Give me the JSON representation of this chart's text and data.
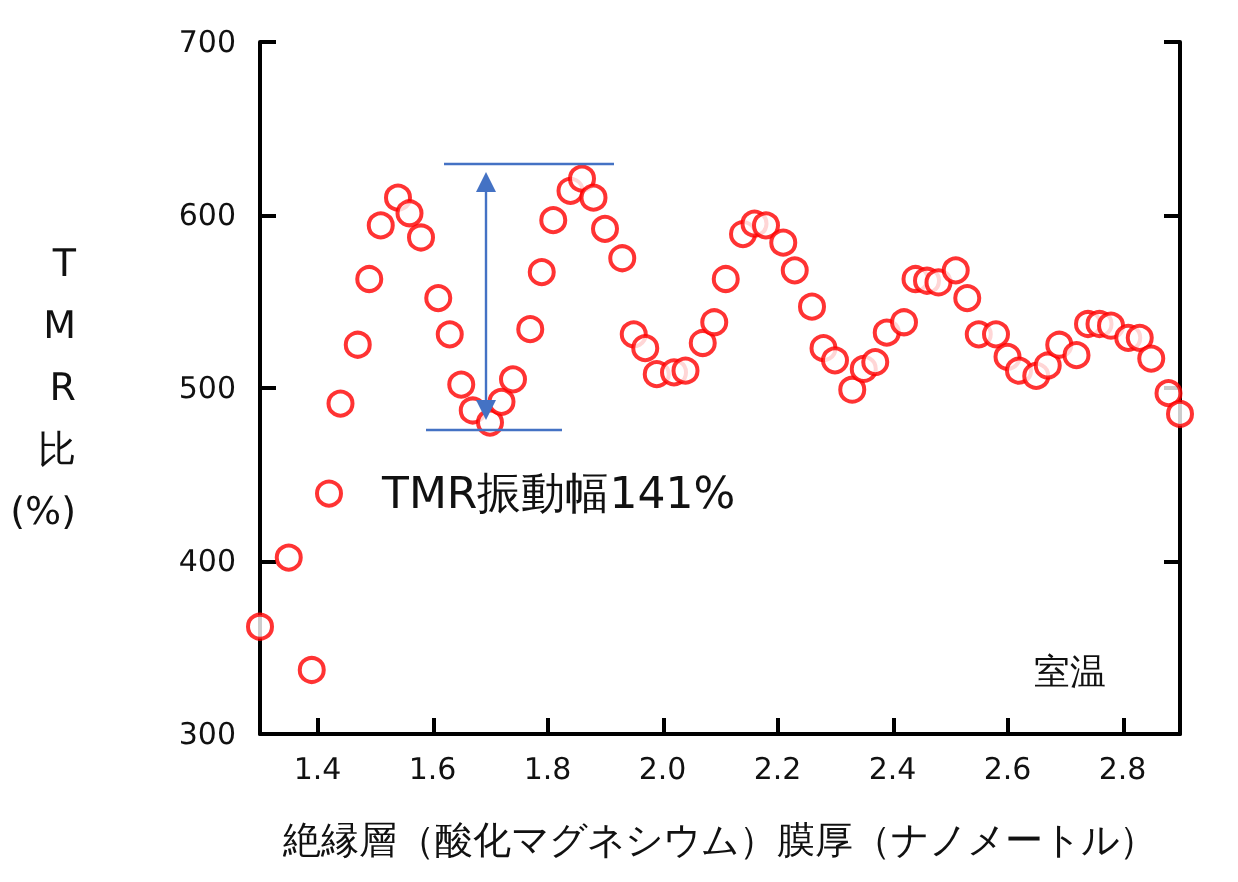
{
  "chart_data": {
    "type": "scatter",
    "xlabel": "絶縁層（酸化マグネシウム）膜厚（ナノメートル）",
    "ylabel": "TMR比(%)",
    "annotations": [
      "TMR振動幅141%",
      "室温"
    ],
    "x": [
      1.3,
      1.35,
      1.39,
      1.42,
      1.44,
      1.47,
      1.49,
      1.51,
      1.54,
      1.56,
      1.58,
      1.61,
      1.63,
      1.65,
      1.67,
      1.7,
      1.72,
      1.74,
      1.77,
      1.79,
      1.81,
      1.84,
      1.86,
      1.88,
      1.9,
      1.93,
      1.95,
      1.97,
      1.99,
      2.02,
      2.04,
      2.07,
      2.09,
      2.11,
      2.14,
      2.16,
      2.18,
      2.21,
      2.23,
      2.26,
      2.28,
      2.3,
      2.33,
      2.35,
      2.37,
      2.39,
      2.42,
      2.44,
      2.46,
      2.48,
      2.51,
      2.53,
      2.55,
      2.58,
      2.6,
      2.62,
      2.65,
      2.67,
      2.69,
      2.72,
      2.74,
      2.76,
      2.78,
      2.81,
      2.83,
      2.85,
      2.88,
      2.9
    ],
    "series": [
      {
        "color": "#ff0000",
        "values": [
          362,
          402,
          337,
          439,
          491,
          525,
          563,
          594,
          610,
          601,
          587,
          552,
          531,
          502,
          487,
          480,
          492,
          505,
          534,
          567,
          597,
          614,
          621,
          610,
          592,
          575,
          531,
          523,
          508,
          509,
          510,
          526,
          538,
          563,
          589,
          595,
          594,
          584,
          568,
          547,
          523,
          516,
          499,
          511,
          515,
          532,
          538,
          563,
          562,
          561,
          568,
          552,
          531,
          531,
          518,
          510,
          507,
          513,
          525,
          519,
          537,
          537,
          536,
          529,
          529,
          517,
          497,
          485
        ]
      }
    ],
    "xlim": [
      1.3,
      2.9
    ],
    "xticks": [
      {
        "value": 1.4,
        "label": "1.4"
      },
      {
        "value": 1.6,
        "label": "1.6"
      },
      {
        "value": 1.8,
        "label": "1.8"
      },
      {
        "value": 2,
        "label": "2.0"
      },
      {
        "value": 2.2,
        "label": "2.2"
      },
      {
        "value": 2.4,
        "label": "2.4"
      },
      {
        "value": 2.6,
        "label": "2.6"
      },
      {
        "value": 2.8,
        "label": "2.8"
      }
    ],
    "ylim": [
      300,
      700
    ],
    "yticks": [
      300,
      400,
      500,
      600,
      700
    ],
    "marker": "circle",
    "grid": false
  }
}
